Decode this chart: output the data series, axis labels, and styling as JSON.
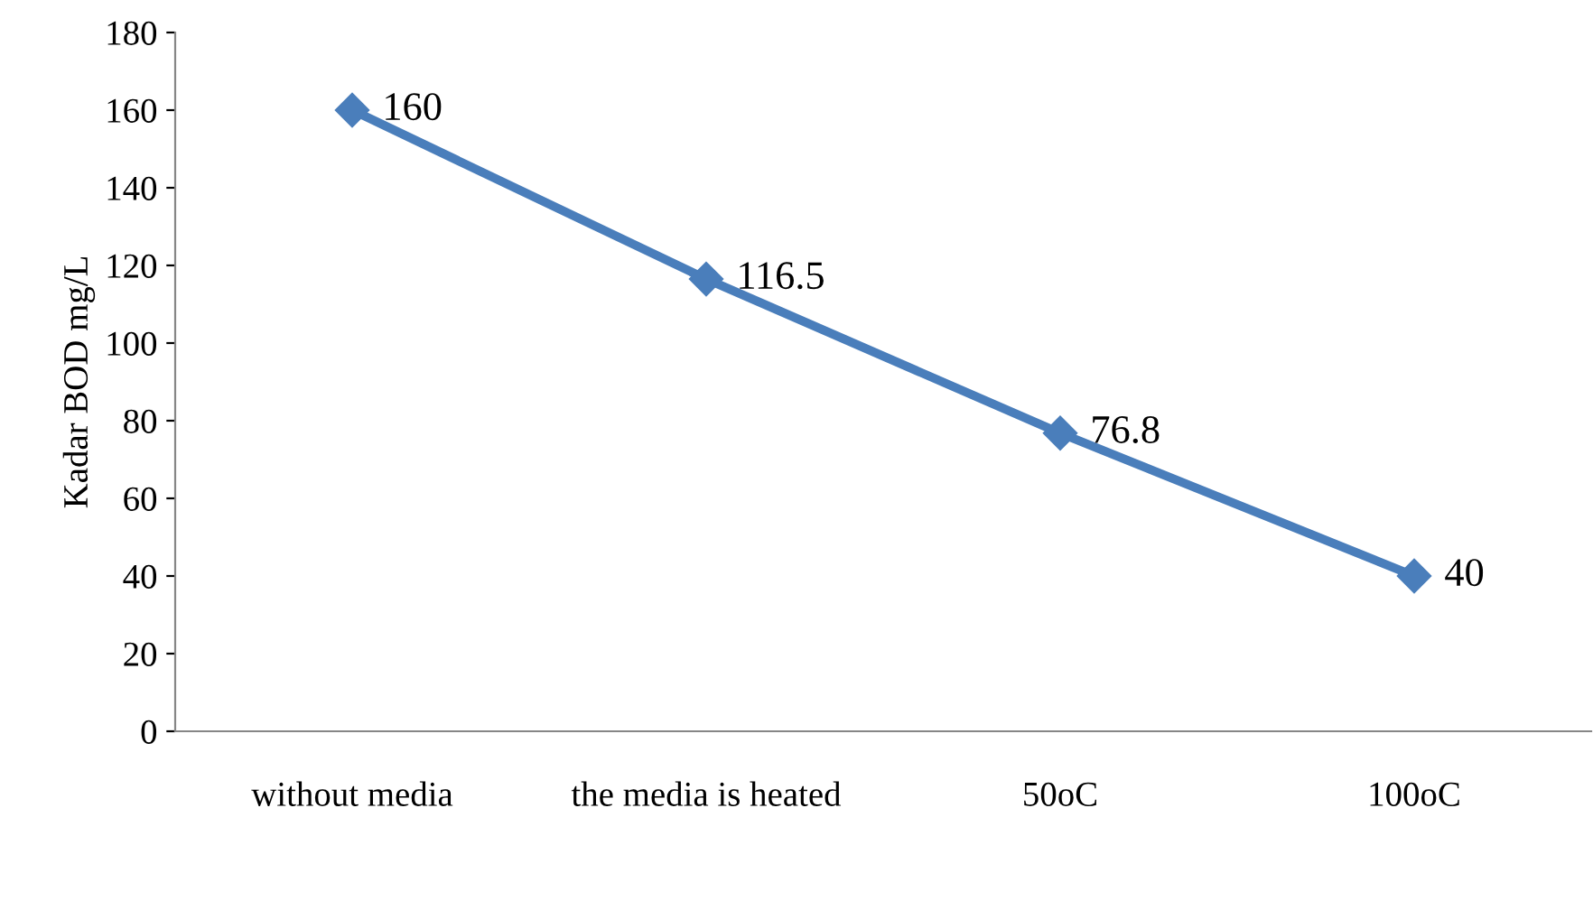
{
  "chart_data": {
    "type": "line",
    "ylabel": "Kadar BOD mg/L",
    "categories": [
      "without media",
      "the media is heated",
      "50oC",
      "100oC"
    ],
    "series": [
      {
        "color": "#4a7ebb",
        "values": [
          160,
          116.5,
          76.8,
          40
        ]
      }
    ],
    "ylim": [
      0,
      180
    ],
    "yticks": [
      0,
      20,
      40,
      60,
      80,
      100,
      120,
      140,
      160,
      180
    ],
    "data_labels": true,
    "marker": "diamond",
    "line_style": "solid"
  }
}
